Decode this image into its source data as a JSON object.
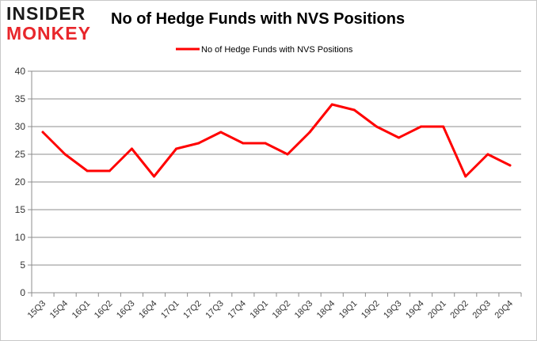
{
  "logo": {
    "line1": "INSIDER",
    "line2": "MONKEY"
  },
  "chart_data": {
    "type": "line",
    "title": "No of Hedge Funds with NVS Positions",
    "xlabel": "",
    "ylabel": "",
    "categories": [
      "15Q3",
      "15Q4",
      "16Q1",
      "16Q2",
      "16Q3",
      "16Q4",
      "17Q1",
      "17Q2",
      "17Q3",
      "17Q4",
      "18Q1",
      "18Q2",
      "18Q3",
      "18Q4",
      "19Q1",
      "19Q2",
      "19Q3",
      "19Q4",
      "20Q1",
      "20Q2",
      "20Q3",
      "20Q4"
    ],
    "series": [
      {
        "name": "No of Hedge Funds with NVS Positions",
        "color": "#ff0000",
        "values": [
          29,
          25,
          22,
          22,
          26,
          21,
          26,
          27,
          29,
          27,
          27,
          25,
          29,
          34,
          33,
          30,
          28,
          30,
          30,
          21,
          25,
          23
        ]
      }
    ],
    "ylim": [
      0,
      40
    ],
    "yticks": [
      0,
      5,
      10,
      15,
      20,
      25,
      30,
      35,
      40
    ],
    "grid": true,
    "legend_position": "top-center"
  }
}
